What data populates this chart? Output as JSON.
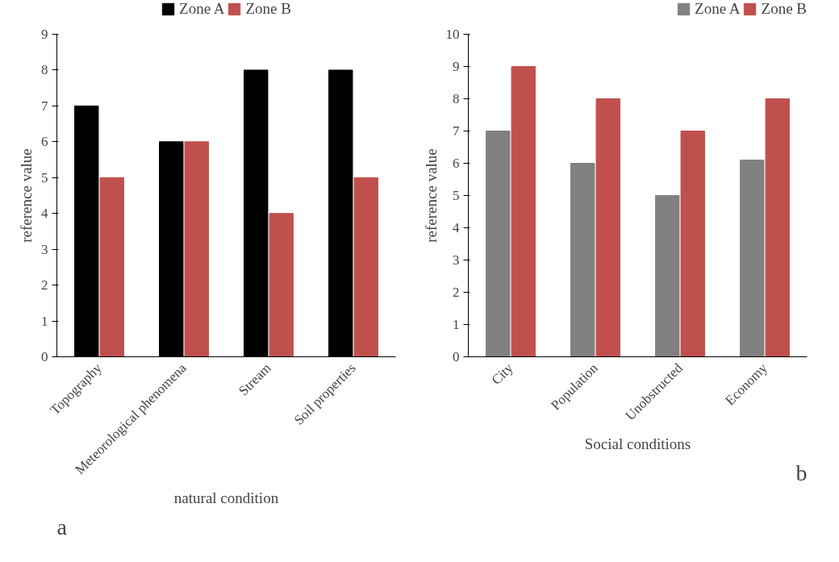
{
  "chart_data": [
    {
      "type": "bar",
      "categories": [
        "Topography",
        "Meteorological phenomena",
        "Stream",
        "Soil properties"
      ],
      "xlabel": "natural condition",
      "ylabel": "reference value",
      "ylim": [
        0,
        9
      ],
      "yticks": [
        0,
        1,
        2,
        3,
        4,
        5,
        6,
        7,
        8,
        9
      ],
      "grid": false,
      "legend": "top",
      "annotations": [
        "a"
      ],
      "series": [
        {
          "name": "Zone A",
          "color": "#000000",
          "values": [
            7,
            6,
            8,
            8
          ]
        },
        {
          "name": "Zone B",
          "color": "#c0504d",
          "values": [
            5,
            6,
            4,
            5
          ]
        }
      ]
    },
    {
      "type": "bar",
      "categories": [
        "City",
        "Population",
        "Unobstructed",
        "Economy"
      ],
      "xlabel": "Social conditions",
      "ylabel": "reference value",
      "ylim": [
        0,
        10
      ],
      "yticks": [
        0,
        1,
        2,
        3,
        4,
        5,
        6,
        7,
        8,
        9,
        10
      ],
      "grid": false,
      "legend": "top right",
      "annotations": [
        "b"
      ],
      "series": [
        {
          "name": "Zone A",
          "color": "#808080",
          "values": [
            7,
            6,
            5,
            6.1
          ]
        },
        {
          "name": "Zone B",
          "color": "#c0504d",
          "values": [
            9,
            8,
            7,
            8
          ]
        }
      ]
    }
  ]
}
